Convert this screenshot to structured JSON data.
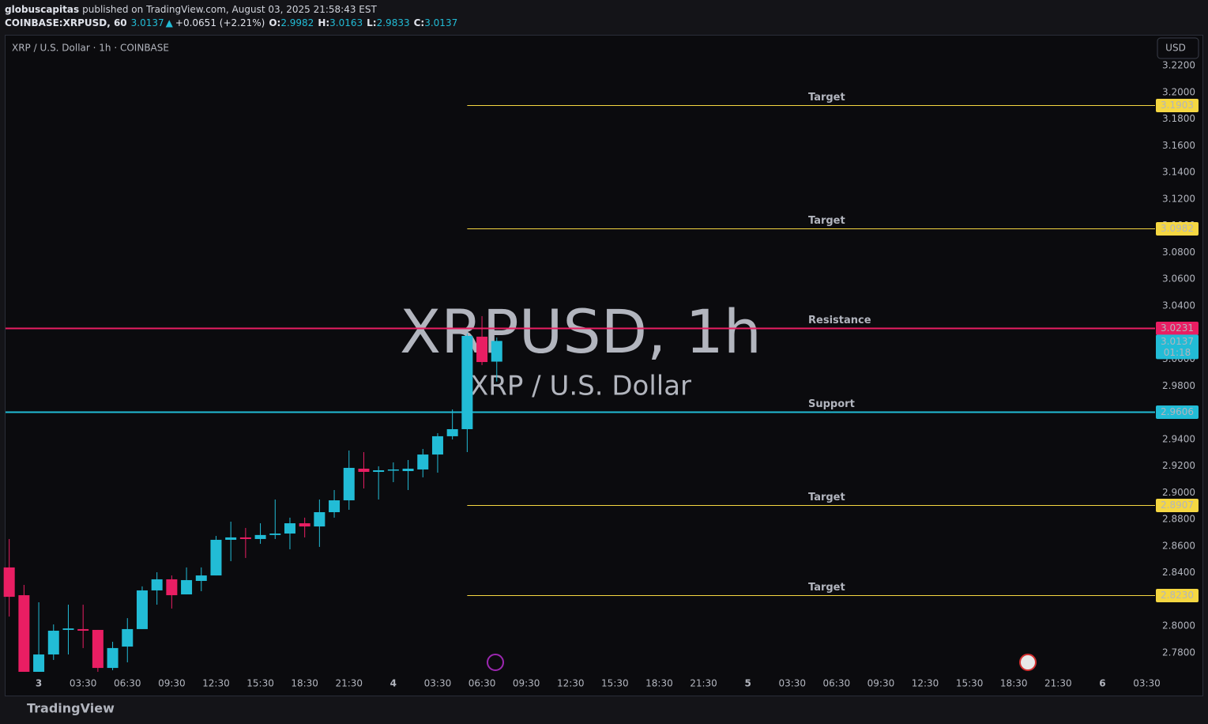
{
  "header": {
    "publisher": "globuscapitas",
    "published": "published on TradingView.com, August 03, 2025 21:58:43 EST",
    "symbol": "COINBASE:XRPUSD, 60",
    "last": "3.0137",
    "arrow": "▲",
    "change": "+0.0651 (+2.21%)",
    "ohlc": [
      {
        "key": "O:",
        "value": "2.9982"
      },
      {
        "key": "H:",
        "value": "3.0163"
      },
      {
        "key": "L:",
        "value": "2.9833"
      },
      {
        "key": "C:",
        "value": "3.0137"
      }
    ]
  },
  "chart_data": {
    "type": "candlestick",
    "legend_title": "XRP / U.S. Dollar · 1h · COINBASE",
    "watermark": "XRPUSD, 1h",
    "watermark_sub": "XRP / U.S. Dollar",
    "currency": "USD",
    "countdown": "01:18",
    "up_color": "#22bcd6",
    "down_color": "#e91e63",
    "grid": false,
    "x": [
      -2,
      -1,
      0,
      1,
      2,
      3,
      4,
      5,
      6,
      7,
      8,
      9,
      10,
      11,
      12,
      13,
      14,
      15,
      16,
      17,
      18,
      19,
      20,
      21,
      22,
      23,
      24,
      25,
      26,
      27,
      28,
      29,
      30,
      31
    ],
    "open": [
      2.844,
      2.8232,
      2.7658,
      2.7788,
      2.7972,
      2.7978,
      2.7972,
      2.7687,
      2.7847,
      2.7978,
      2.8268,
      2.8351,
      2.8238,
      2.8339,
      2.838,
      2.8647,
      2.8665,
      2.8653,
      2.8683,
      2.8694,
      2.8771,
      2.8747,
      2.8854,
      2.8943,
      2.918,
      2.9156,
      2.9168,
      2.9162,
      2.9174,
      2.9286,
      2.9423,
      2.9476,
      3.0169,
      2.9982
    ],
    "high": [
      2.8653,
      2.8309,
      2.8179,
      2.8013,
      2.8161,
      2.8161,
      2.7972,
      2.7883,
      2.806,
      2.8298,
      2.8404,
      2.838,
      2.844,
      2.844,
      2.8676,
      2.8783,
      2.8736,
      2.8771,
      2.8949,
      2.8813,
      2.8813,
      2.8949,
      2.902,
      2.9316,
      2.9304,
      2.9198,
      2.9227,
      2.9245,
      2.9328,
      2.9446,
      2.9624,
      3.0192,
      3.0323,
      3.0163
    ],
    "low": [
      2.8072,
      2.7658,
      2.7658,
      2.7747,
      2.7788,
      2.7836,
      2.7658,
      2.767,
      2.7729,
      2.7978,
      2.8161,
      2.8132,
      2.8238,
      2.8262,
      2.838,
      2.8487,
      2.8511,
      2.8617,
      2.8653,
      2.8576,
      2.8665,
      2.8594,
      2.8813,
      2.8872,
      2.9032,
      2.8949,
      2.9079,
      2.902,
      2.9115,
      2.915,
      2.9399,
      2.9304,
      2.9956,
      2.9833
    ],
    "close": [
      2.822,
      2.7658,
      2.7788,
      2.7966,
      2.7983,
      2.7966,
      2.7687,
      2.7836,
      2.7978,
      2.8268,
      2.8351,
      2.8232,
      2.8345,
      2.838,
      2.8647,
      2.8665,
      2.8653,
      2.8683,
      2.8694,
      2.8771,
      2.8747,
      2.8854,
      2.8943,
      2.9186,
      2.9156,
      2.9168,
      2.9174,
      2.918,
      2.9286,
      2.9423,
      2.9476,
      3.0175,
      2.9979,
      3.0137
    ],
    "xlim": [
      -2.25,
      75.56
    ],
    "xticks": [
      {
        "value": 0,
        "label": "3"
      },
      {
        "value": 3,
        "label": "03:30"
      },
      {
        "value": 6,
        "label": "06:30"
      },
      {
        "value": 9,
        "label": "09:30"
      },
      {
        "value": 12,
        "label": "12:30"
      },
      {
        "value": 15,
        "label": "15:30"
      },
      {
        "value": 18,
        "label": "18:30"
      },
      {
        "value": 21,
        "label": "21:30"
      },
      {
        "value": 24,
        "label": "4"
      },
      {
        "value": 27,
        "label": "03:30"
      },
      {
        "value": 30,
        "label": "06:30"
      },
      {
        "value": 33,
        "label": "09:30"
      },
      {
        "value": 36,
        "label": "12:30"
      },
      {
        "value": 39,
        "label": "15:30"
      },
      {
        "value": 42,
        "label": "18:30"
      },
      {
        "value": 45,
        "label": "21:30"
      },
      {
        "value": 48,
        "label": "5"
      },
      {
        "value": 51,
        "label": "03:30"
      },
      {
        "value": 54,
        "label": "06:30"
      },
      {
        "value": 57,
        "label": "09:30"
      },
      {
        "value": 60,
        "label": "12:30"
      },
      {
        "value": 63,
        "label": "15:30"
      },
      {
        "value": 66,
        "label": "18:30"
      },
      {
        "value": 69,
        "label": "21:30"
      },
      {
        "value": 72,
        "label": "6"
      },
      {
        "value": 75,
        "label": "03:30"
      }
    ],
    "ylim": [
      2.7646,
      3.2425
    ],
    "yticks": [
      {
        "value": 3.22,
        "label": "3.2200"
      },
      {
        "value": 3.2,
        "label": "3.2000"
      },
      {
        "value": 3.18,
        "label": "3.1800"
      },
      {
        "value": 3.16,
        "label": "3.1600"
      },
      {
        "value": 3.14,
        "label": "3.1400"
      },
      {
        "value": 3.12,
        "label": "3.1200"
      },
      {
        "value": 3.1,
        "label": "3.1000"
      },
      {
        "value": 3.08,
        "label": "3.0800"
      },
      {
        "value": 3.06,
        "label": "3.0600"
      },
      {
        "value": 3.04,
        "label": "3.0400"
      },
      {
        "value": 3.0,
        "label": "3.0000"
      },
      {
        "value": 2.98,
        "label": "2.9800"
      },
      {
        "value": 2.94,
        "label": "2.9400"
      },
      {
        "value": 2.92,
        "label": "2.9200"
      },
      {
        "value": 2.9,
        "label": "2.9000"
      },
      {
        "value": 2.88,
        "label": "2.8800"
      },
      {
        "value": 2.86,
        "label": "2.8600"
      },
      {
        "value": 2.84,
        "label": "2.8400"
      },
      {
        "value": 2.8,
        "label": "2.8000"
      },
      {
        "value": 2.78,
        "label": "2.7800"
      }
    ],
    "levels": [
      {
        "label": "Target",
        "value": 3.1903,
        "value_label": "3.1903",
        "x_start": 29,
        "color": "#f5d742"
      },
      {
        "label": "Target",
        "value": 3.0982,
        "value_label": "3.0982",
        "x_start": 29,
        "color": "#f5d742"
      },
      {
        "label": "Resistance",
        "value": 3.0231,
        "value_label": "3.0231",
        "color": "#e91e63"
      },
      {
        "label": "Support",
        "value": 2.9606,
        "value_label": "2.9606",
        "color": "#22bcd6"
      },
      {
        "label": "Target",
        "value": 2.8907,
        "value_label": "2.8907",
        "x_start": 29,
        "color": "#f5d742"
      },
      {
        "label": "Target",
        "value": 2.823,
        "value_label": "2.8230",
        "x_start": 29,
        "color": "#f5d742"
      }
    ]
  },
  "footer": {
    "brand": "TradingView"
  }
}
